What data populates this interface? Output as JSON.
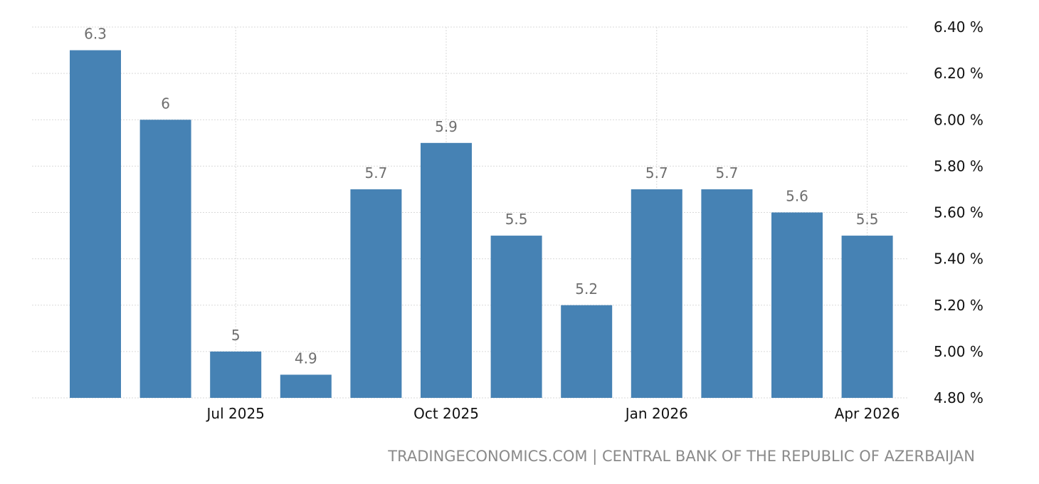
{
  "chart_data": {
    "type": "bar",
    "categories": [
      "May 2025",
      "Jun 2025",
      "Jul 2025",
      "Aug 2025",
      "Sep 2025",
      "Oct 2025",
      "Nov 2025",
      "Dec 2025",
      "Jan 2026",
      "Feb 2026",
      "Mar 2026",
      "Apr 2026"
    ],
    "values": [
      6.3,
      6.0,
      5.0,
      4.9,
      5.7,
      5.9,
      5.5,
      5.2,
      5.7,
      5.7,
      5.6,
      5.5
    ],
    "data_labels": [
      "6.3",
      "6",
      "5",
      "4.9",
      "5.7",
      "5.9",
      "5.5",
      "5.2",
      "5.7",
      "5.7",
      "5.6",
      "5.5"
    ],
    "x_tick_labels": [
      {
        "label": "Jul 2025",
        "category": "Jul 2025"
      },
      {
        "label": "Oct 2025",
        "category": "Oct 2025"
      },
      {
        "label": "Jan 2026",
        "category": "Jan 2026"
      },
      {
        "label": "Apr 2026",
        "category": "Apr 2026"
      }
    ],
    "y_ticks": [
      4.8,
      5.0,
      5.2,
      5.4,
      5.6,
      5.8,
      6.0,
      6.2,
      6.4
    ],
    "y_tick_labels": [
      "4.80 %",
      "5.00 %",
      "5.20 %",
      "5.40 %",
      "5.60 %",
      "5.80 %",
      "6.00 %",
      "6.20 %",
      "6.40 %"
    ],
    "ylim": [
      4.8,
      6.4
    ],
    "y_axis_position": "right",
    "grid": true,
    "bar_color": "#4682b4",
    "label_color": "#6f6f6f",
    "grid_color": "#d9d9d9"
  },
  "source_text": "TRADINGECONOMICS.COM | CENTRAL BANK OF THE REPUBLIC OF AZERBAIJAN"
}
